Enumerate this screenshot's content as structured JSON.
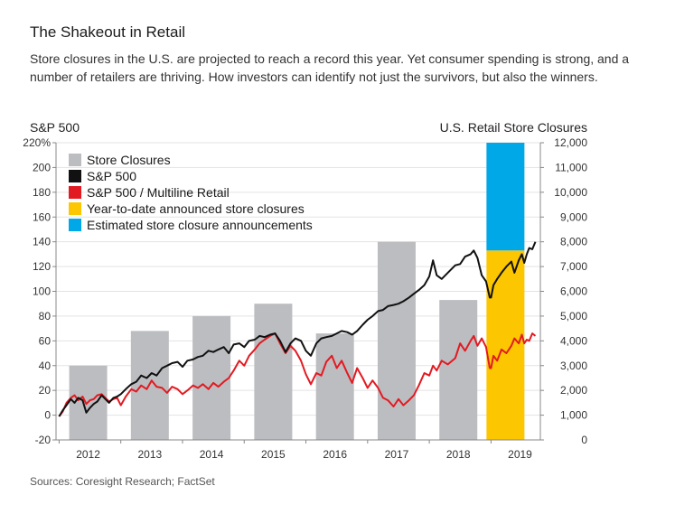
{
  "header": {
    "title": "The Shakeout in Retail",
    "subtitle": "Store closures in the U.S. are projected to reach a record this year. Yet consumer spending is strong, and a number of retailers are thriving. How investors can identify not just the survivors, but also the winners."
  },
  "source": "Sources: Coresight Research; FactSet",
  "chart_data": {
    "type": "bar+line",
    "left_axis": {
      "label": "S&P 500",
      "range": [
        -20,
        220
      ],
      "ticks": [
        -20,
        0,
        20,
        40,
        60,
        80,
        100,
        120,
        140,
        160,
        180,
        200,
        220
      ],
      "tick_labels": [
        "-20",
        "0",
        "20",
        "40",
        "60",
        "80",
        "100",
        "120",
        "140",
        "160",
        "180",
        "200",
        "220%"
      ]
    },
    "right_axis": {
      "label": "U.S. Retail Store Closures",
      "range": [
        0,
        12000
      ],
      "ticks": [
        0,
        1000,
        2000,
        3000,
        4000,
        5000,
        6000,
        7000,
        8000,
        9000,
        10000,
        11000,
        12000
      ],
      "tick_labels": [
        "0",
        "1,000",
        "2,000",
        "3,000",
        "4,000",
        "5,000",
        "6,000",
        "7,000",
        "8,000",
        "9,000",
        "10,000",
        "11,000",
        "12,000"
      ]
    },
    "x_axis": {
      "years": [
        "2012",
        "2013",
        "2014",
        "2015",
        "2016",
        "2017",
        "2018",
        "2019"
      ]
    },
    "legend": {
      "placement": "top-left",
      "entries": [
        {
          "label": "Store Closures",
          "color": "#bcbdc0"
        },
        {
          "label": "S&P 500",
          "color": "#111111"
        },
        {
          "label": "S&P 500 / Multiline Retail",
          "color": "#e21a22"
        },
        {
          "label": "Year-to-date announced store closures",
          "color": "#fcc600"
        },
        {
          "label": "Estimated store closure announcements",
          "color": "#00a8e8"
        }
      ]
    },
    "store_closures": [
      {
        "year": "2012",
        "value": 3000
      },
      {
        "year": "2013",
        "value": 4400
      },
      {
        "year": "2014",
        "value": 5000
      },
      {
        "year": "2015",
        "value": 5500
      },
      {
        "year": "2016",
        "value": 4300
      },
      {
        "year": "2017",
        "value": 8000
      },
      {
        "year": "2018",
        "value": 5650
      }
    ],
    "closures_2019": {
      "year": "2019",
      "ytd": 7650,
      "estimated_total": 12000
    },
    "series": [
      {
        "name": "S&P 500",
        "color": "#111111",
        "points": [
          [
            2012.0,
            -1
          ],
          [
            2012.06,
            4
          ],
          [
            2012.12,
            8
          ],
          [
            2012.19,
            13
          ],
          [
            2012.25,
            10
          ],
          [
            2012.31,
            14
          ],
          [
            2012.38,
            12
          ],
          [
            2012.44,
            2
          ],
          [
            2012.5,
            6
          ],
          [
            2012.56,
            9
          ],
          [
            2012.62,
            11
          ],
          [
            2012.69,
            16
          ],
          [
            2012.75,
            13
          ],
          [
            2012.81,
            10
          ],
          [
            2012.88,
            14
          ],
          [
            2012.94,
            15
          ],
          [
            2013.0,
            17
          ],
          [
            2013.08,
            21
          ],
          [
            2013.17,
            25
          ],
          [
            2013.25,
            27
          ],
          [
            2013.33,
            32
          ],
          [
            2013.42,
            30
          ],
          [
            2013.5,
            34
          ],
          [
            2013.58,
            32
          ],
          [
            2013.67,
            38
          ],
          [
            2013.75,
            40
          ],
          [
            2013.83,
            42
          ],
          [
            2013.92,
            43
          ],
          [
            2014.0,
            39
          ],
          [
            2014.08,
            44
          ],
          [
            2014.17,
            45
          ],
          [
            2014.25,
            47
          ],
          [
            2014.33,
            48
          ],
          [
            2014.42,
            52
          ],
          [
            2014.5,
            51
          ],
          [
            2014.58,
            53
          ],
          [
            2014.67,
            55
          ],
          [
            2014.75,
            50
          ],
          [
            2014.83,
            57
          ],
          [
            2014.92,
            58
          ],
          [
            2015.0,
            55
          ],
          [
            2015.08,
            60
          ],
          [
            2015.17,
            61
          ],
          [
            2015.25,
            64
          ],
          [
            2015.33,
            63
          ],
          [
            2015.42,
            65
          ],
          [
            2015.5,
            66
          ],
          [
            2015.58,
            60
          ],
          [
            2015.67,
            51
          ],
          [
            2015.75,
            58
          ],
          [
            2015.83,
            62
          ],
          [
            2015.92,
            60
          ],
          [
            2016.0,
            52
          ],
          [
            2016.08,
            48
          ],
          [
            2016.17,
            58
          ],
          [
            2016.25,
            62
          ],
          [
            2016.33,
            63
          ],
          [
            2016.42,
            64
          ],
          [
            2016.5,
            66
          ],
          [
            2016.58,
            68
          ],
          [
            2016.67,
            67
          ],
          [
            2016.75,
            65
          ],
          [
            2016.83,
            68
          ],
          [
            2016.92,
            73
          ],
          [
            2017.0,
            77
          ],
          [
            2017.08,
            80
          ],
          [
            2017.17,
            84
          ],
          [
            2017.25,
            85
          ],
          [
            2017.33,
            88
          ],
          [
            2017.42,
            89
          ],
          [
            2017.5,
            90
          ],
          [
            2017.58,
            92
          ],
          [
            2017.67,
            95
          ],
          [
            2017.75,
            98
          ],
          [
            2017.83,
            101
          ],
          [
            2017.92,
            105
          ],
          [
            2018.0,
            112
          ],
          [
            2018.06,
            125
          ],
          [
            2018.12,
            113
          ],
          [
            2018.2,
            110
          ],
          [
            2018.3,
            115
          ],
          [
            2018.42,
            121
          ],
          [
            2018.5,
            122
          ],
          [
            2018.58,
            128
          ],
          [
            2018.67,
            130
          ],
          [
            2018.72,
            133
          ],
          [
            2018.78,
            127
          ],
          [
            2018.85,
            113
          ],
          [
            2018.92,
            108
          ],
          [
            2018.98,
            95
          ],
          [
            2019.0,
            95
          ],
          [
            2019.04,
            105
          ],
          [
            2019.1,
            110
          ],
          [
            2019.17,
            115
          ],
          [
            2019.25,
            120
          ],
          [
            2019.33,
            124
          ],
          [
            2019.38,
            115
          ],
          [
            2019.45,
            125
          ],
          [
            2019.5,
            130
          ],
          [
            2019.54,
            123
          ],
          [
            2019.58,
            130
          ],
          [
            2019.62,
            135
          ],
          [
            2019.67,
            134
          ],
          [
            2019.72,
            140
          ]
        ]
      },
      {
        "name": "S&P 500 / Multiline Retail",
        "color": "#e21a22",
        "points": [
          [
            2012.0,
            -1
          ],
          [
            2012.06,
            3
          ],
          [
            2012.12,
            10
          ],
          [
            2012.19,
            14
          ],
          [
            2012.25,
            16
          ],
          [
            2012.31,
            12
          ],
          [
            2012.38,
            15
          ],
          [
            2012.44,
            9
          ],
          [
            2012.5,
            12
          ],
          [
            2012.56,
            13
          ],
          [
            2012.62,
            16
          ],
          [
            2012.69,
            17
          ],
          [
            2012.75,
            14
          ],
          [
            2012.81,
            11
          ],
          [
            2012.88,
            13
          ],
          [
            2012.94,
            14
          ],
          [
            2013.0,
            8
          ],
          [
            2013.08,
            15
          ],
          [
            2013.17,
            21
          ],
          [
            2013.25,
            19
          ],
          [
            2013.33,
            24
          ],
          [
            2013.42,
            21
          ],
          [
            2013.5,
            28
          ],
          [
            2013.58,
            23
          ],
          [
            2013.67,
            22
          ],
          [
            2013.75,
            18
          ],
          [
            2013.83,
            23
          ],
          [
            2013.92,
            21
          ],
          [
            2014.0,
            17
          ],
          [
            2014.08,
            20
          ],
          [
            2014.17,
            24
          ],
          [
            2014.25,
            22
          ],
          [
            2014.33,
            25
          ],
          [
            2014.42,
            21
          ],
          [
            2014.5,
            26
          ],
          [
            2014.58,
            23
          ],
          [
            2014.67,
            27
          ],
          [
            2014.75,
            30
          ],
          [
            2014.83,
            36
          ],
          [
            2014.92,
            44
          ],
          [
            2015.0,
            40
          ],
          [
            2015.08,
            48
          ],
          [
            2015.17,
            53
          ],
          [
            2015.25,
            58
          ],
          [
            2015.33,
            61
          ],
          [
            2015.42,
            64
          ],
          [
            2015.5,
            66
          ],
          [
            2015.58,
            58
          ],
          [
            2015.67,
            50
          ],
          [
            2015.75,
            56
          ],
          [
            2015.83,
            52
          ],
          [
            2015.92,
            44
          ],
          [
            2016.0,
            33
          ],
          [
            2016.08,
            25
          ],
          [
            2016.17,
            34
          ],
          [
            2016.25,
            32
          ],
          [
            2016.33,
            43
          ],
          [
            2016.42,
            48
          ],
          [
            2016.5,
            38
          ],
          [
            2016.58,
            44
          ],
          [
            2016.67,
            34
          ],
          [
            2016.75,
            26
          ],
          [
            2016.83,
            38
          ],
          [
            2016.92,
            30
          ],
          [
            2017.0,
            22
          ],
          [
            2017.08,
            28
          ],
          [
            2017.17,
            22
          ],
          [
            2017.25,
            14
          ],
          [
            2017.33,
            12
          ],
          [
            2017.42,
            7
          ],
          [
            2017.5,
            13
          ],
          [
            2017.58,
            8
          ],
          [
            2017.67,
            12
          ],
          [
            2017.75,
            16
          ],
          [
            2017.83,
            24
          ],
          [
            2017.92,
            34
          ],
          [
            2018.0,
            32
          ],
          [
            2018.06,
            40
          ],
          [
            2018.12,
            36
          ],
          [
            2018.2,
            44
          ],
          [
            2018.3,
            41
          ],
          [
            2018.42,
            46
          ],
          [
            2018.5,
            58
          ],
          [
            2018.58,
            52
          ],
          [
            2018.67,
            60
          ],
          [
            2018.72,
            64
          ],
          [
            2018.78,
            56
          ],
          [
            2018.85,
            62
          ],
          [
            2018.92,
            55
          ],
          [
            2018.98,
            38
          ],
          [
            2019.0,
            38
          ],
          [
            2019.04,
            48
          ],
          [
            2019.1,
            44
          ],
          [
            2019.17,
            53
          ],
          [
            2019.25,
            50
          ],
          [
            2019.33,
            56
          ],
          [
            2019.38,
            62
          ],
          [
            2019.45,
            58
          ],
          [
            2019.5,
            65
          ],
          [
            2019.54,
            58
          ],
          [
            2019.58,
            61
          ],
          [
            2019.62,
            60
          ],
          [
            2019.67,
            66
          ],
          [
            2019.72,
            64
          ]
        ]
      }
    ]
  }
}
